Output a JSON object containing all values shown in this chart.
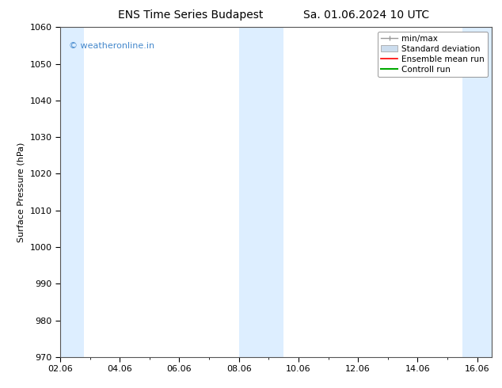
{
  "title_left": "ENS Time Series Budapest",
  "title_right": "Sa. 01.06.2024 10 UTC",
  "ylabel": "Surface Pressure (hPa)",
  "ylim": [
    970,
    1060
  ],
  "yticks": [
    970,
    980,
    990,
    1000,
    1010,
    1020,
    1030,
    1040,
    1050,
    1060
  ],
  "xlim": [
    2,
    16.5
  ],
  "xtick_labels": [
    "02.06",
    "04.06",
    "06.06",
    "08.06",
    "10.06",
    "12.06",
    "14.06",
    "16.06"
  ],
  "xtick_positions": [
    2,
    4,
    6,
    8,
    10,
    12,
    14,
    16
  ],
  "shaded_bands": [
    {
      "x_start": 2.0,
      "x_end": 2.8,
      "color": "#ddeeff"
    },
    {
      "x_start": 8.0,
      "x_end": 9.5,
      "color": "#ddeeff"
    },
    {
      "x_start": 15.5,
      "x_end": 16.5,
      "color": "#ddeeff"
    }
  ],
  "legend_labels": [
    "min/max",
    "Standard deviation",
    "Ensemble mean run",
    "Controll run"
  ],
  "minmax_color": "#999999",
  "std_facecolor": "#ccddee",
  "std_edgecolor": "#999999",
  "ens_color": "#ff0000",
  "ctrl_color": "#00aa00",
  "watermark": "© weatheronline.in",
  "watermark_color": "#4488cc",
  "background_color": "#ffffff",
  "plot_bg_color": "#ffffff",
  "title_fontsize": 10,
  "axis_fontsize": 8,
  "tick_fontsize": 8,
  "legend_fontsize": 7.5
}
